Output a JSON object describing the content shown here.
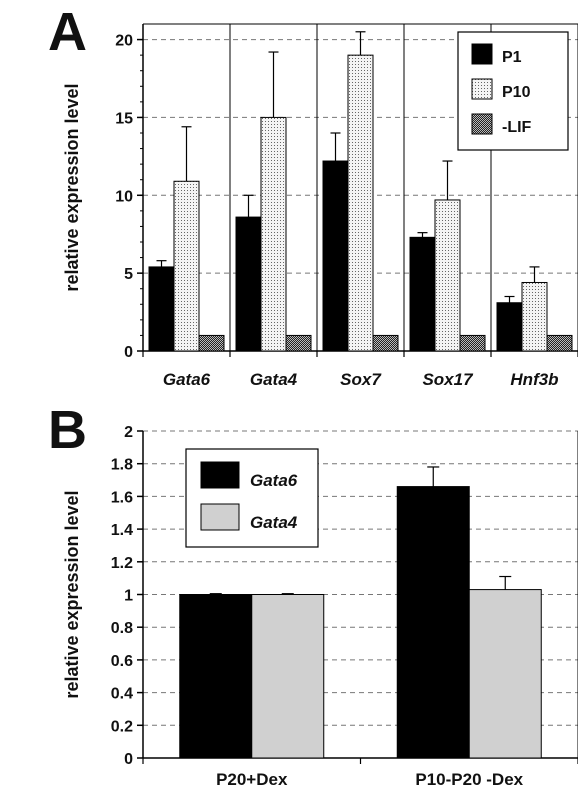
{
  "panels": {
    "a": {
      "letter": "A"
    },
    "b": {
      "letter": "B"
    }
  },
  "chart_data": [
    {
      "type": "bar",
      "panel": "A",
      "ylabel": "relative expression level",
      "xlabel": "",
      "ylim": [
        0,
        21
      ],
      "yticks": [
        0,
        5,
        10,
        15,
        20
      ],
      "grid": "horizontal dashed at 5, 10, 15, 20",
      "categories": [
        "Gata6",
        "Gata4",
        "Sox7",
        "Sox17",
        "Hnf3b"
      ],
      "categories_italic": true,
      "legend_position": "top-right",
      "series": [
        {
          "name": "P1",
          "color": "#000000",
          "pattern": "solid",
          "values": [
            5.4,
            8.6,
            12.2,
            7.3,
            3.1
          ],
          "errors": [
            0.4,
            1.4,
            1.8,
            0.3,
            0.4
          ]
        },
        {
          "name": "P10",
          "color": "#e6e6e6",
          "pattern": "dotted",
          "values": [
            10.9,
            15.0,
            19.0,
            9.7,
            4.4
          ],
          "errors": [
            3.5,
            4.2,
            1.5,
            2.5,
            1.0
          ]
        },
        {
          "name": "-LIF",
          "color": "#555555",
          "pattern": "dense-check",
          "values": [
            1.0,
            1.0,
            1.0,
            1.0,
            1.0
          ],
          "errors": [
            0,
            0,
            0,
            0,
            0
          ]
        }
      ]
    },
    {
      "type": "bar",
      "panel": "B",
      "ylabel": "relative expression level",
      "xlabel": "",
      "ylim": [
        0,
        2
      ],
      "yticks": [
        "0",
        "0.2",
        "0.4",
        "0.6",
        "0.8",
        "1",
        "1.2",
        "1.4",
        "1.6",
        "1.8",
        "2"
      ],
      "grid": "horizontal dashed every 0.2",
      "categories": [
        "P20+Dex",
        "P10-P20 -Dex"
      ],
      "categories_italic": false,
      "legend_position": "top-left",
      "series": [
        {
          "name": "Gata6",
          "color": "#000000",
          "pattern": "solid",
          "values": [
            1.0,
            1.66
          ],
          "errors": [
            0.005,
            0.12
          ]
        },
        {
          "name": "Gata4",
          "color": "#d0d0d0",
          "pattern": "solid",
          "values": [
            1.0,
            1.03
          ],
          "errors": [
            0.005,
            0.08
          ]
        }
      ]
    }
  ]
}
